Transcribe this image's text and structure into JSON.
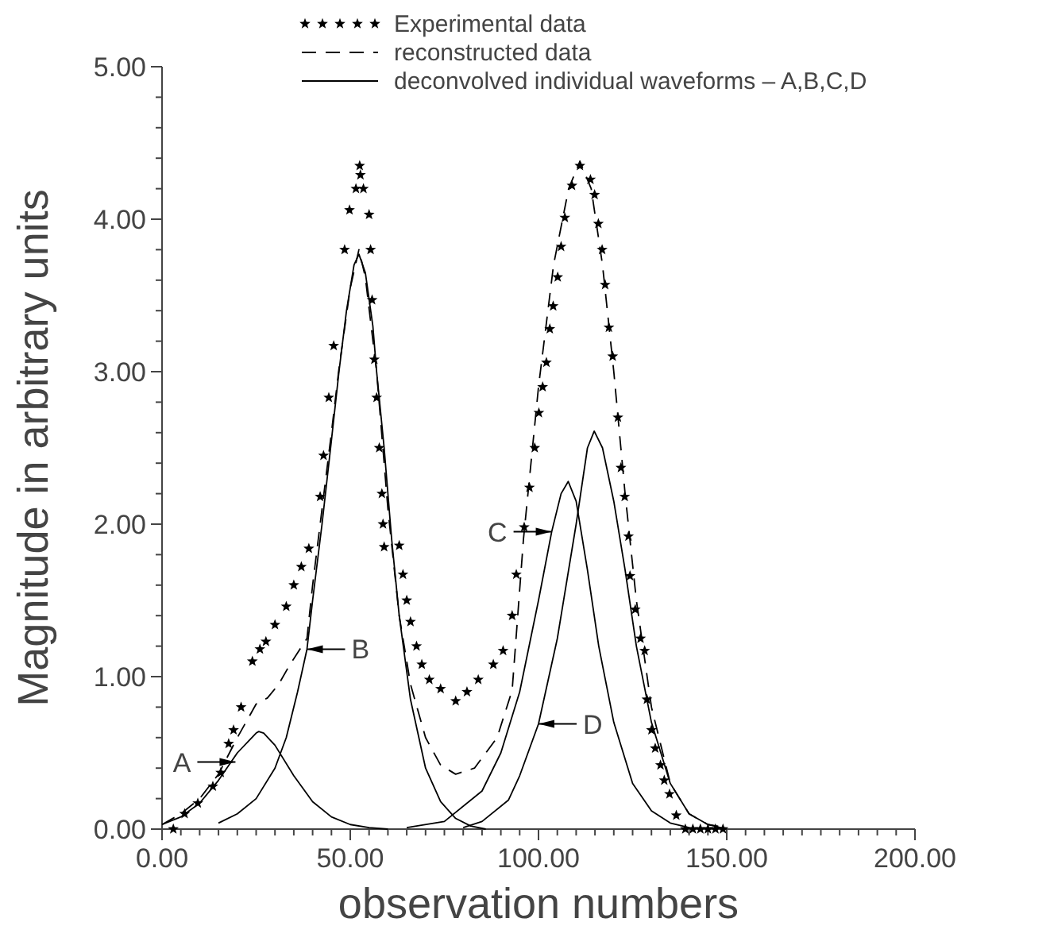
{
  "chart_data": {
    "type": "line",
    "xlabel": "observation numbers",
    "ylabel": "Magnitude in arbitrary units",
    "xlim": [
      0,
      200
    ],
    "ylim": [
      0,
      5
    ],
    "xticks": [
      {
        "value": 0,
        "label": "0.00"
      },
      {
        "value": 5,
        "label": null
      },
      {
        "value": 10,
        "label": null
      },
      {
        "value": 15,
        "label": null
      },
      {
        "value": 20,
        "label": null
      },
      {
        "value": 25,
        "label": null
      },
      {
        "value": 30,
        "label": null
      },
      {
        "value": 35,
        "label": null
      },
      {
        "value": 40,
        "label": null
      },
      {
        "value": 45,
        "label": null
      },
      {
        "value": 50,
        "label": "50.00"
      },
      {
        "value": 55,
        "label": null
      },
      {
        "value": 60,
        "label": null
      },
      {
        "value": 65,
        "label": null
      },
      {
        "value": 70,
        "label": null
      },
      {
        "value": 75,
        "label": null
      },
      {
        "value": 80,
        "label": null
      },
      {
        "value": 85,
        "label": null
      },
      {
        "value": 90,
        "label": null
      },
      {
        "value": 95,
        "label": null
      },
      {
        "value": 100,
        "label": "100.00"
      },
      {
        "value": 105,
        "label": null
      },
      {
        "value": 110,
        "label": null
      },
      {
        "value": 115,
        "label": null
      },
      {
        "value": 120,
        "label": null
      },
      {
        "value": 125,
        "label": null
      },
      {
        "value": 130,
        "label": null
      },
      {
        "value": 135,
        "label": null
      },
      {
        "value": 140,
        "label": null
      },
      {
        "value": 145,
        "label": null
      },
      {
        "value": 150,
        "label": "150.00"
      },
      {
        "value": 155,
        "label": null
      },
      {
        "value": 160,
        "label": null
      },
      {
        "value": 165,
        "label": null
      },
      {
        "value": 170,
        "label": null
      },
      {
        "value": 175,
        "label": null
      },
      {
        "value": 180,
        "label": null
      },
      {
        "value": 185,
        "label": null
      },
      {
        "value": 190,
        "label": null
      },
      {
        "value": 195,
        "label": null
      },
      {
        "value": 200,
        "label": "200.00"
      }
    ],
    "yticks": [
      {
        "value": 0,
        "label": "0.00"
      },
      {
        "value": 0.2,
        "label": null
      },
      {
        "value": 0.4,
        "label": null
      },
      {
        "value": 0.6,
        "label": null
      },
      {
        "value": 0.8,
        "label": null
      },
      {
        "value": 1,
        "label": "1.00"
      },
      {
        "value": 1.2,
        "label": null
      },
      {
        "value": 1.4,
        "label": null
      },
      {
        "value": 1.6,
        "label": null
      },
      {
        "value": 1.8,
        "label": null
      },
      {
        "value": 2,
        "label": "2.00"
      },
      {
        "value": 2.2,
        "label": null
      },
      {
        "value": 2.4,
        "label": null
      },
      {
        "value": 2.6,
        "label": null
      },
      {
        "value": 2.8,
        "label": null
      },
      {
        "value": 3,
        "label": "3.00"
      },
      {
        "value": 3.2,
        "label": null
      },
      {
        "value": 3.4,
        "label": null
      },
      {
        "value": 3.6,
        "label": null
      },
      {
        "value": 3.8,
        "label": null
      },
      {
        "value": 4,
        "label": "4.00"
      },
      {
        "value": 4.2,
        "label": null
      },
      {
        "value": 4.4,
        "label": null
      },
      {
        "value": 4.6,
        "label": null
      },
      {
        "value": 4.8,
        "label": null
      },
      {
        "value": 5,
        "label": "5.00"
      }
    ],
    "grid": false,
    "legend": "top",
    "series": [
      {
        "name": "Experimental data",
        "type": "scatter",
        "marker": "star",
        "color": "#000000",
        "x": [
          3,
          6,
          9.5,
          13.5,
          15.6,
          17.7,
          19,
          21,
          24,
          26,
          27.6,
          30,
          33,
          35,
          37,
          39,
          42,
          42.9,
          44.3,
          45.6,
          48.5,
          49.8,
          51.5,
          52.5,
          52.7,
          53.5,
          55,
          55.4,
          55.8,
          56.4,
          57,
          57.7,
          58.4,
          58.7,
          59,
          63,
          64,
          65,
          66,
          67.6,
          69,
          71,
          74,
          78,
          81,
          84,
          88,
          90.6,
          93,
          94.1,
          96.2,
          97.6,
          99,
          100.1,
          101.1,
          102.1,
          103,
          103.9,
          105.1,
          106,
          107,
          108.9,
          111,
          113.8,
          114.9,
          115.9,
          116.9,
          117.7,
          118.7,
          119.7,
          121.1,
          121.9,
          122.9,
          123.9,
          124.3,
          125.7,
          127.1,
          128.2,
          128.8,
          130,
          131,
          132.4,
          133.4,
          134.8,
          136.6,
          139,
          141,
          143,
          145,
          147,
          149
        ],
        "values": [
          0,
          0.1,
          0.17,
          0.28,
          0.37,
          0.56,
          0.65,
          0.8,
          1.1,
          1.18,
          1.23,
          1.34,
          1.46,
          1.6,
          1.72,
          1.84,
          2.18,
          2.45,
          2.83,
          3.17,
          3.8,
          4.06,
          4.2,
          4.35,
          4.29,
          4.2,
          4.03,
          3.8,
          3.47,
          3.08,
          2.83,
          2.5,
          2.2,
          2,
          1.85,
          1.86,
          1.67,
          1.5,
          1.36,
          1.2,
          1.08,
          0.98,
          0.92,
          0.84,
          0.9,
          0.98,
          1.08,
          1.17,
          1.4,
          1.67,
          1.98,
          2.24,
          2.5,
          2.73,
          2.9,
          3.06,
          3.28,
          3.43,
          3.62,
          3.82,
          4.01,
          4.22,
          4.35,
          4.26,
          4.16,
          3.97,
          3.8,
          3.57,
          3.29,
          3.1,
          2.7,
          2.37,
          2.18,
          1.92,
          1.66,
          1.44,
          1.25,
          1.17,
          0.85,
          0.65,
          0.53,
          0.42,
          0.32,
          0.23,
          0.09,
          0,
          0,
          0,
          0,
          0,
          0
        ]
      },
      {
        "name": "reconstructed data",
        "line_style": "dashed",
        "color": "#000000",
        "x": [
          0,
          5,
          10,
          15,
          20,
          25,
          28,
          31,
          34,
          38.5,
          40,
          42.5,
          45,
          47,
          50,
          52.3,
          54,
          57,
          60,
          63,
          66,
          70,
          74,
          78,
          83,
          89,
          93,
          96,
          100,
          104,
          108,
          111,
          114,
          117,
          120,
          123,
          126,
          130,
          135,
          140,
          145,
          150
        ],
        "values": [
          0.03,
          0.1,
          0.2,
          0.36,
          0.6,
          0.82,
          0.86,
          0.95,
          1.08,
          1.25,
          1.6,
          2.1,
          2.6,
          3.02,
          3.55,
          3.8,
          3.62,
          3,
          2.1,
          1.4,
          0.95,
          0.6,
          0.42,
          0.36,
          0.4,
          0.6,
          0.91,
          1.9,
          2.9,
          3.7,
          4.2,
          4.38,
          4.2,
          3.7,
          3,
          2.2,
          1.5,
          0.8,
          0.3,
          0.1,
          0.03,
          0.01
        ]
      },
      {
        "name": "deconvolved individual waveforms – A,B,C,D",
        "line_style": "solid",
        "color": "#000000",
        "x": [
          0,
          5,
          10,
          15,
          20,
          25,
          25.7,
          27,
          30,
          35,
          40,
          45,
          50,
          55,
          60
        ],
        "values": [
          0.03,
          0.08,
          0.17,
          0.32,
          0.5,
          0.63,
          0.64,
          0.63,
          0.55,
          0.35,
          0.18,
          0.08,
          0.03,
          0.01,
          0
        ]
      },
      {
        "line_style": "solid",
        "color": "#000000",
        "x": [
          15,
          20,
          25,
          30,
          33,
          36,
          38.5,
          40,
          42.5,
          45,
          47,
          49,
          51,
          52.3,
          54,
          56,
          57,
          59,
          61,
          63,
          66,
          70,
          74,
          78,
          82,
          86
        ],
        "values": [
          0.04,
          0.1,
          0.2,
          0.4,
          0.6,
          0.9,
          1.18,
          1.5,
          2,
          2.55,
          3,
          3.4,
          3.7,
          3.77,
          3.65,
          3.3,
          3,
          2.5,
          1.9,
          1.4,
          0.85,
          0.4,
          0.18,
          0.07,
          0.02,
          0
        ]
      },
      {
        "line_style": "solid",
        "color": "#000000",
        "x": [
          65,
          75,
          85,
          90,
          95,
          100,
          103.5,
          106,
          107.9,
          110,
          113,
          116,
          120,
          125,
          130,
          135,
          140
        ],
        "values": [
          0.01,
          0.05,
          0.25,
          0.5,
          0.9,
          1.5,
          1.95,
          2.2,
          2.28,
          2.15,
          1.7,
          1.2,
          0.7,
          0.3,
          0.12,
          0.04,
          0.01
        ]
      },
      {
        "line_style": "solid",
        "color": "#000000",
        "x": [
          80,
          85,
          92,
          95,
          100,
          105,
          110,
          113,
          114.8,
          117,
          120,
          123,
          126,
          130,
          135,
          140,
          145,
          150
        ],
        "values": [
          0.01,
          0.05,
          0.19,
          0.35,
          0.69,
          1.25,
          2,
          2.5,
          2.61,
          2.5,
          2.15,
          1.7,
          1.2,
          0.7,
          0.3,
          0.1,
          0.03,
          0
        ]
      }
    ],
    "annotations": [
      {
        "text": "A",
        "x": 19.5,
        "y": 0.44
      },
      {
        "text": "B",
        "x": 38.5,
        "y": 1.18
      },
      {
        "text": "C",
        "x": 103.5,
        "y": 1.95
      },
      {
        "text": "D",
        "x": 100,
        "y": 0.69
      }
    ]
  }
}
